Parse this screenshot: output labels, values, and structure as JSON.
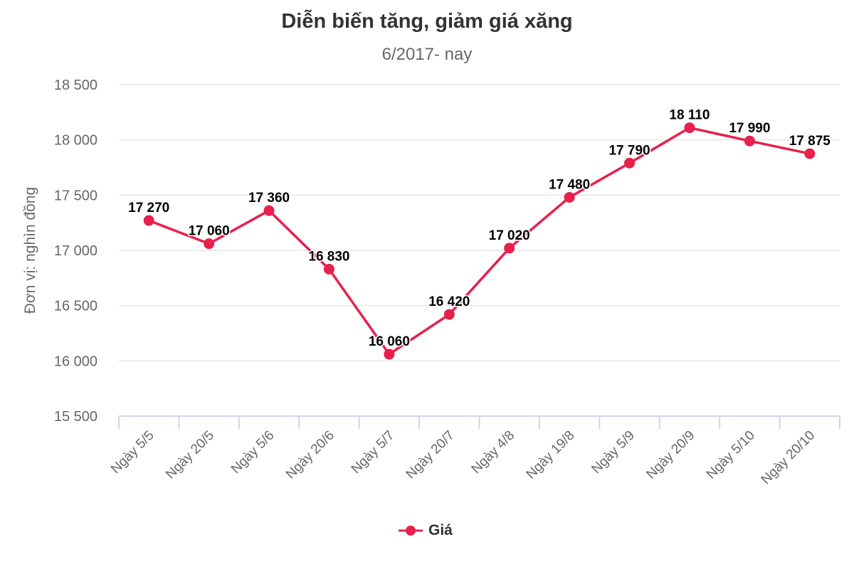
{
  "title": "Diễn biến tăng, giảm giá xăng",
  "subtitle": "6/2017- nay",
  "legend": {
    "label": "Giá",
    "icon": "line-marker-icon"
  },
  "colors": {
    "series": "#e8204b",
    "grid": "#e6e6e6",
    "axis": "#ccd6eb",
    "text": "#666666"
  },
  "chart_data": {
    "type": "line",
    "title": "Diễn biến tăng, giảm giá xăng",
    "subtitle": "6/2017- nay",
    "xlabel": "",
    "ylabel": "Đơn vị: nghìn đồng",
    "ylim": [
      15500,
      18500
    ],
    "yticks": [
      15500,
      16000,
      16500,
      17000,
      17500,
      18000,
      18500
    ],
    "ytick_labels": [
      "15 500",
      "16 000",
      "16 500",
      "17 000",
      "17 500",
      "18 000",
      "18 500"
    ],
    "grid": true,
    "legend_position": "bottom",
    "categories": [
      "Ngày 5/5",
      "Ngày 20/5",
      "Ngày 5/6",
      "Ngày 20/6",
      "Ngày 5/7",
      "Ngày 20/7",
      "Ngày 4/8",
      "Ngày 19/8",
      "Ngày 5/9",
      "Ngày 20/9",
      "Ngày 5/10",
      "Ngày 20/10"
    ],
    "series": [
      {
        "name": "Giá",
        "values": [
          17270,
          17060,
          17360,
          16830,
          16060,
          16420,
          17020,
          17480,
          17790,
          18110,
          17990,
          17875
        ],
        "labels": [
          "17 270",
          "17 060",
          "17 360",
          "16 830",
          "16 060",
          "16 420",
          "17 020",
          "17 480",
          "17 790",
          "18 110",
          "17 990",
          "17 875"
        ]
      }
    ]
  }
}
